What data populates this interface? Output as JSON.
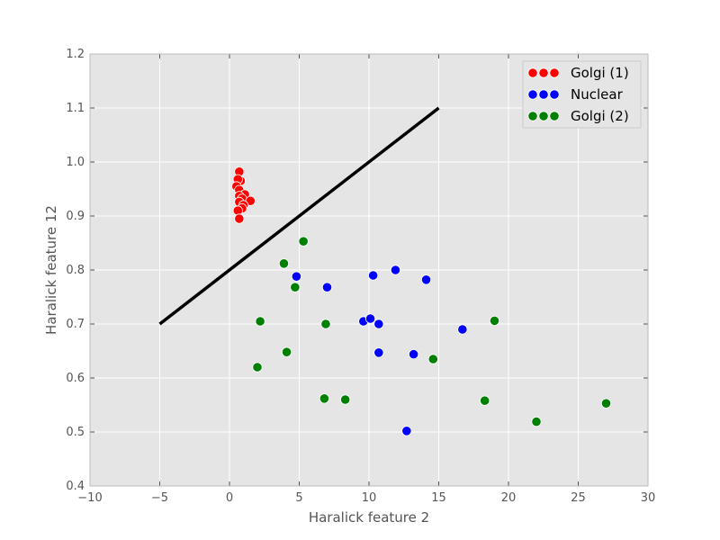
{
  "chart_data": {
    "type": "scatter",
    "title": "",
    "xlabel": "Haralick feature 2",
    "ylabel": "Haralick feature 12",
    "xlim": [
      -10,
      30
    ],
    "ylim": [
      0.4,
      1.2
    ],
    "x_ticks": [
      -10,
      -5,
      0,
      5,
      10,
      15,
      20,
      25,
      30
    ],
    "y_ticks": [
      0.4,
      0.5,
      0.6,
      0.7,
      0.8,
      0.9,
      1.0,
      1.1,
      1.2
    ],
    "x_tick_labels": [
      "−10",
      "−5",
      "0",
      "5",
      "10",
      "15",
      "20",
      "25",
      "30"
    ],
    "y_tick_labels": [
      "0.4",
      "0.5",
      "0.6",
      "0.7",
      "0.8",
      "0.9",
      "1.0",
      "1.1",
      "1.2"
    ],
    "grid": true,
    "background": "#e5e5e5",
    "legend_position": "top-right",
    "series": [
      {
        "name": "Golgi (1)",
        "color": "#ff0000",
        "points": [
          {
            "x": 0.7,
            "y": 0.982
          },
          {
            "x": 0.8,
            "y": 0.965
          },
          {
            "x": 0.6,
            "y": 0.968
          },
          {
            "x": 0.5,
            "y": 0.955
          },
          {
            "x": 0.7,
            "y": 0.948
          },
          {
            "x": 1.1,
            "y": 0.94
          },
          {
            "x": 0.7,
            "y": 0.937
          },
          {
            "x": 0.9,
            "y": 0.932
          },
          {
            "x": 1.5,
            "y": 0.928
          },
          {
            "x": 0.7,
            "y": 0.926
          },
          {
            "x": 1.0,
            "y": 0.92
          },
          {
            "x": 0.9,
            "y": 0.914
          },
          {
            "x": 0.6,
            "y": 0.91
          },
          {
            "x": 0.7,
            "y": 0.895
          }
        ]
      },
      {
        "name": "Nuclear",
        "color": "#0000ff",
        "points": [
          {
            "x": 4.8,
            "y": 0.788
          },
          {
            "x": 7.0,
            "y": 0.768
          },
          {
            "x": 9.6,
            "y": 0.705
          },
          {
            "x": 10.1,
            "y": 0.71
          },
          {
            "x": 10.3,
            "y": 0.79
          },
          {
            "x": 10.7,
            "y": 0.7
          },
          {
            "x": 10.7,
            "y": 0.647
          },
          {
            "x": 11.9,
            "y": 0.8
          },
          {
            "x": 12.7,
            "y": 0.502
          },
          {
            "x": 13.2,
            "y": 0.644
          },
          {
            "x": 14.1,
            "y": 0.782
          },
          {
            "x": 16.7,
            "y": 0.69
          }
        ]
      },
      {
        "name": "Golgi (2)",
        "color": "#008000",
        "points": [
          {
            "x": 2.0,
            "y": 0.62
          },
          {
            "x": 2.2,
            "y": 0.705
          },
          {
            "x": 3.9,
            "y": 0.812
          },
          {
            "x": 4.1,
            "y": 0.648
          },
          {
            "x": 4.7,
            "y": 0.768
          },
          {
            "x": 5.3,
            "y": 0.853
          },
          {
            "x": 6.8,
            "y": 0.562
          },
          {
            "x": 6.9,
            "y": 0.7
          },
          {
            "x": 8.3,
            "y": 0.56
          },
          {
            "x": 14.6,
            "y": 0.635
          },
          {
            "x": 18.3,
            "y": 0.558
          },
          {
            "x": 19.0,
            "y": 0.706
          },
          {
            "x": 22.0,
            "y": 0.519
          },
          {
            "x": 27.0,
            "y": 0.553
          }
        ]
      }
    ],
    "lines": [
      {
        "color": "#000000",
        "points": [
          {
            "x": -5,
            "y": 0.7
          },
          {
            "x": 15,
            "y": 1.1
          }
        ]
      }
    ]
  }
}
